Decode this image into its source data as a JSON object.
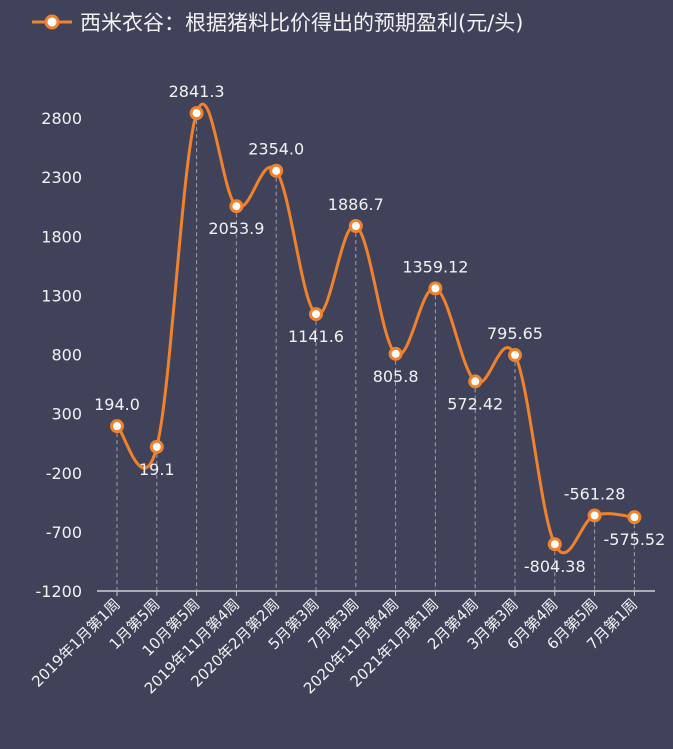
{
  "chart_data": {
    "type": "line",
    "title": "西米衣谷：根据猪料比价得出的预期盈利(元/头)",
    "legend": [
      "西米衣谷：根据猪料比价得出的预期盈利(元/头)"
    ],
    "legend_position": "top",
    "categories": [
      "2019年1月第1周",
      "1月第5周",
      "10月第5周",
      "2019年11月第4周",
      "2020年2月第2周",
      "5月第3周",
      "7月第3周",
      "2020年11月第4周",
      "2021年1月第1周",
      "2月第4周",
      "3月第3周",
      "6月第4周",
      "6月第5周",
      "7月第1周"
    ],
    "values": [
      194.0,
      19.1,
      2841.3,
      2053.9,
      2354.0,
      1141.6,
      1886.7,
      805.8,
      1359.12,
      572.42,
      795.65,
      -804.38,
      -561.28,
      -575.52
    ],
    "data_labels": [
      "194.0",
      "19.1",
      "2841.3",
      "2053.9",
      "2354.0",
      "1141.6",
      "1886.7",
      "805.8",
      "1359.12",
      "572.42",
      "795.65",
      "-804.38",
      "-561.28",
      "-575.52"
    ],
    "yticks": [
      2800,
      2300,
      1800,
      1300,
      800,
      300,
      -200,
      -700,
      -1200
    ],
    "ylim": [
      -1200,
      2800
    ],
    "smooth": true,
    "colors": {
      "line": "#f0822e",
      "background": "#404259",
      "text": "#f2f2f2"
    }
  }
}
